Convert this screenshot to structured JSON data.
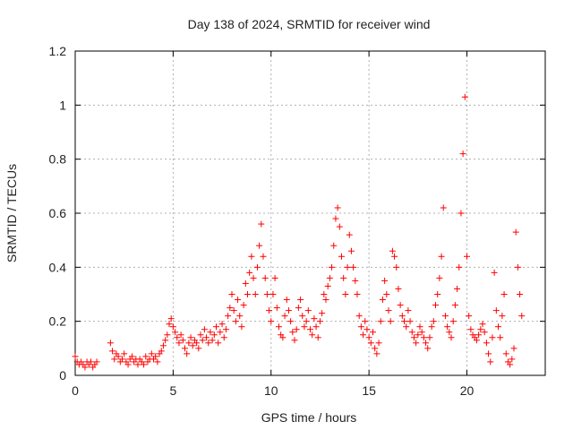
{
  "chart_data": {
    "type": "scatter",
    "title": "Day 138 of 2024, SRMTID for receiver wind",
    "xlabel": "GPS time / hours",
    "ylabel": "SRMTID / TECUs",
    "xlim": [
      0,
      24
    ],
    "ylim": [
      0,
      1.2
    ],
    "xticks": [
      0,
      5,
      10,
      15,
      20
    ],
    "yticks": [
      0,
      0.2,
      0.4,
      0.6,
      0.8,
      1.0,
      1.2
    ],
    "xtick_labels": [
      "0",
      "5",
      "10",
      "15",
      "20"
    ],
    "ytick_labels": [
      "0",
      "0.2",
      "0.4",
      "0.6",
      "0.8",
      "1",
      "1.2"
    ],
    "grid": true,
    "marker": "+",
    "marker_color": "#ff0000",
    "series": [
      {
        "name": "SRMTID",
        "x": [
          0.0,
          0.1,
          0.2,
          0.3,
          0.4,
          0.5,
          0.6,
          0.7,
          0.8,
          0.9,
          1.0,
          1.1,
          1.8,
          1.9,
          2.0,
          2.1,
          2.2,
          2.3,
          2.4,
          2.5,
          2.6,
          2.7,
          2.8,
          2.9,
          3.0,
          3.1,
          3.2,
          3.3,
          3.4,
          3.5,
          3.6,
          3.7,
          3.8,
          3.9,
          4.0,
          4.1,
          4.2,
          4.3,
          4.4,
          4.5,
          4.6,
          4.7,
          4.8,
          4.9,
          5.0,
          5.1,
          5.2,
          5.3,
          5.4,
          5.5,
          5.6,
          5.7,
          5.8,
          5.9,
          6.0,
          6.1,
          6.2,
          6.3,
          6.4,
          6.5,
          6.6,
          6.7,
          6.8,
          6.9,
          7.0,
          7.1,
          7.2,
          7.3,
          7.4,
          7.5,
          7.6,
          7.7,
          7.8,
          7.9,
          8.0,
          8.1,
          8.2,
          8.3,
          8.4,
          8.5,
          8.6,
          8.7,
          8.8,
          8.9,
          9.0,
          9.1,
          9.2,
          9.3,
          9.4,
          9.5,
          9.6,
          9.7,
          9.8,
          9.9,
          10.0,
          10.1,
          10.2,
          10.3,
          10.4,
          10.5,
          10.6,
          10.7,
          10.8,
          10.9,
          11.0,
          11.1,
          11.2,
          11.3,
          11.4,
          11.5,
          11.6,
          11.7,
          11.8,
          11.9,
          12.0,
          12.1,
          12.2,
          12.3,
          12.4,
          12.5,
          12.6,
          12.7,
          12.8,
          12.9,
          13.0,
          13.1,
          13.2,
          13.3,
          13.4,
          13.5,
          13.6,
          13.7,
          13.8,
          13.9,
          14.0,
          14.1,
          14.2,
          14.3,
          14.4,
          14.5,
          14.6,
          14.7,
          14.8,
          14.9,
          15.0,
          15.1,
          15.2,
          15.3,
          15.4,
          15.5,
          15.6,
          15.7,
          15.8,
          15.9,
          16.0,
          16.1,
          16.2,
          16.3,
          16.4,
          16.5,
          16.6,
          16.7,
          16.8,
          16.9,
          17.0,
          17.1,
          17.2,
          17.3,
          17.4,
          17.5,
          17.6,
          17.7,
          17.8,
          17.9,
          18.0,
          18.1,
          18.2,
          18.3,
          18.4,
          18.5,
          18.6,
          18.7,
          18.8,
          18.9,
          19.0,
          19.1,
          19.2,
          19.3,
          19.4,
          19.5,
          19.6,
          19.7,
          19.8,
          19.9,
          20.0,
          20.1,
          20.2,
          20.3,
          20.4,
          20.5,
          20.6,
          20.7,
          20.8,
          20.9,
          21.0,
          21.1,
          21.2,
          21.3,
          21.4,
          21.5,
          21.6,
          21.7,
          21.8,
          21.9,
          22.0,
          22.1,
          22.2,
          22.3,
          22.4,
          22.5,
          22.6,
          22.7,
          22.8
        ],
        "y": [
          0.07,
          0.05,
          0.04,
          0.05,
          0.04,
          0.03,
          0.05,
          0.04,
          0.05,
          0.03,
          0.04,
          0.05,
          0.12,
          0.09,
          0.06,
          0.08,
          0.07,
          0.05,
          0.06,
          0.08,
          0.05,
          0.04,
          0.06,
          0.07,
          0.05,
          0.06,
          0.04,
          0.06,
          0.05,
          0.04,
          0.07,
          0.05,
          0.06,
          0.08,
          0.06,
          0.07,
          0.05,
          0.08,
          0.09,
          0.11,
          0.13,
          0.15,
          0.19,
          0.21,
          0.18,
          0.16,
          0.14,
          0.12,
          0.15,
          0.13,
          0.1,
          0.08,
          0.12,
          0.14,
          0.11,
          0.13,
          0.12,
          0.1,
          0.15,
          0.13,
          0.17,
          0.14,
          0.12,
          0.16,
          0.13,
          0.15,
          0.18,
          0.12,
          0.16,
          0.19,
          0.14,
          0.17,
          0.22,
          0.25,
          0.3,
          0.24,
          0.2,
          0.28,
          0.22,
          0.18,
          0.26,
          0.34,
          0.3,
          0.38,
          0.44,
          0.36,
          0.3,
          0.4,
          0.48,
          0.56,
          0.44,
          0.36,
          0.3,
          0.24,
          0.2,
          0.3,
          0.36,
          0.25,
          0.18,
          0.15,
          0.14,
          0.22,
          0.28,
          0.24,
          0.2,
          0.16,
          0.13,
          0.17,
          0.25,
          0.28,
          0.22,
          0.18,
          0.2,
          0.24,
          0.17,
          0.15,
          0.21,
          0.18,
          0.14,
          0.2,
          0.23,
          0.3,
          0.28,
          0.33,
          0.36,
          0.4,
          0.48,
          0.58,
          0.62,
          0.55,
          0.44,
          0.36,
          0.3,
          0.4,
          0.52,
          0.46,
          0.4,
          0.35,
          0.3,
          0.22,
          0.18,
          0.15,
          0.2,
          0.17,
          0.14,
          0.12,
          0.16,
          0.1,
          0.08,
          0.12,
          0.2,
          0.28,
          0.35,
          0.3,
          0.24,
          0.2,
          0.46,
          0.44,
          0.4,
          0.32,
          0.26,
          0.22,
          0.2,
          0.18,
          0.24,
          0.2,
          0.16,
          0.14,
          0.12,
          0.15,
          0.18,
          0.16,
          0.14,
          0.12,
          0.1,
          0.14,
          0.18,
          0.2,
          0.26,
          0.3,
          0.36,
          0.44,
          0.62,
          0.22,
          0.18,
          0.16,
          0.14,
          0.2,
          0.26,
          0.32,
          0.4,
          0.6,
          0.82,
          1.03,
          0.44,
          0.22,
          0.17,
          0.15,
          0.14,
          0.13,
          0.15,
          0.17,
          0.19,
          0.16,
          0.12,
          0.08,
          0.05,
          0.14,
          0.38,
          0.24,
          0.18,
          0.14,
          0.22,
          0.3,
          0.08,
          0.05,
          0.04,
          0.06,
          0.1,
          0.53,
          0.4,
          0.3,
          0.22
        ]
      }
    ]
  }
}
